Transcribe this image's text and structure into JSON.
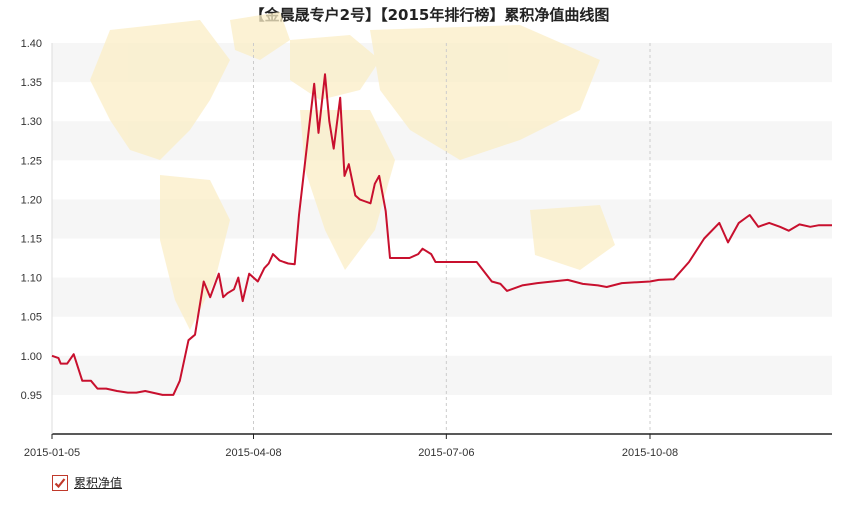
{
  "title": "【金晨晟专户2号】【2015年排行榜】累积净值曲线图",
  "legend": {
    "label": "累积净值",
    "checked": true
  },
  "colors": {
    "line": "#c8102e",
    "band": "#f6f6f6",
    "axis": "#222222",
    "map": "#fbeec6"
  },
  "chart_data": {
    "type": "line",
    "title": "【金晨晟专户2号】【2015年排行榜】累积净值曲线图",
    "xlabel": "",
    "ylabel": "",
    "ylim": [
      0.9,
      1.4
    ],
    "yticks": [
      "0.95",
      "1.00",
      "1.05",
      "1.10",
      "1.15",
      "1.20",
      "1.25",
      "1.30",
      "1.35",
      "1.40"
    ],
    "xticks": [
      "2015-01-05",
      "2015-04-08",
      "2015-07-06",
      "2015-10-08"
    ],
    "grid": {
      "horizontal_bands": true,
      "vertical_dashed": true
    },
    "legend_position": "bottom-left",
    "series": [
      {
        "name": "累积净值",
        "x": [
          "2015-01-05",
          "2015-01-08",
          "2015-01-09",
          "2015-01-12",
          "2015-01-15",
          "2015-01-19",
          "2015-01-21",
          "2015-01-23",
          "2015-01-26",
          "2015-01-30",
          "2015-02-04",
          "2015-02-09",
          "2015-02-13",
          "2015-02-17",
          "2015-02-25",
          "2015-03-02",
          "2015-03-05",
          "2015-03-09",
          "2015-03-12",
          "2015-03-16",
          "2015-03-19",
          "2015-03-23",
          "2015-03-25",
          "2015-03-27",
          "2015-03-30",
          "2015-04-01",
          "2015-04-03",
          "2015-04-06",
          "2015-04-08",
          "2015-04-10",
          "2015-04-13",
          "2015-04-15",
          "2015-04-17",
          "2015-04-20",
          "2015-04-22",
          "2015-04-24",
          "2015-04-27",
          "2015-04-29",
          "2015-05-04",
          "2015-05-06",
          "2015-05-08",
          "2015-05-11",
          "2015-05-13",
          "2015-05-15",
          "2015-05-18",
          "2015-05-20",
          "2015-05-22",
          "2015-05-25",
          "2015-05-27",
          "2015-05-29",
          "2015-06-01",
          "2015-06-03",
          "2015-06-05",
          "2015-06-08",
          "2015-06-10",
          "2015-06-12",
          "2015-06-15",
          "2015-06-17",
          "2015-06-19",
          "2015-06-23",
          "2015-06-25",
          "2015-06-29",
          "2015-07-01",
          "2015-07-03",
          "2015-07-06",
          "2015-07-08",
          "2015-07-13",
          "2015-07-20",
          "2015-07-27",
          "2015-07-31",
          "2015-08-03",
          "2015-08-10",
          "2015-08-17",
          "2015-08-24",
          "2015-08-31",
          "2015-09-07",
          "2015-09-14",
          "2015-09-18",
          "2015-09-25",
          "2015-10-08",
          "2015-10-12",
          "2015-10-19",
          "2015-10-26",
          "2015-11-02",
          "2015-11-09",
          "2015-11-13",
          "2015-11-18",
          "2015-11-23",
          "2015-11-27",
          "2015-12-02",
          "2015-12-07",
          "2015-12-11",
          "2015-12-16",
          "2015-12-21",
          "2015-12-25",
          "2015-12-31"
        ],
        "values": [
          1.0,
          0.997,
          0.99,
          0.99,
          1.002,
          0.968,
          0.968,
          0.968,
          0.958,
          0.958,
          0.955,
          0.953,
          0.953,
          0.955,
          0.95,
          0.95,
          0.968,
          1.02,
          1.027,
          1.095,
          1.075,
          1.105,
          1.075,
          1.08,
          1.085,
          1.1,
          1.07,
          1.105,
          1.1,
          1.095,
          1.112,
          1.118,
          1.13,
          1.122,
          1.12,
          1.118,
          1.117,
          1.18,
          1.3,
          1.348,
          1.285,
          1.36,
          1.3,
          1.265,
          1.33,
          1.23,
          1.245,
          1.205,
          1.2,
          1.198,
          1.195,
          1.22,
          1.23,
          1.185,
          1.125,
          1.125,
          1.125,
          1.125,
          1.125,
          1.13,
          1.137,
          1.13,
          1.12,
          1.12,
          1.12,
          1.12,
          1.12,
          1.12,
          1.095,
          1.092,
          1.083,
          1.09,
          1.093,
          1.095,
          1.097,
          1.092,
          1.09,
          1.088,
          1.093,
          1.095,
          1.097,
          1.098,
          1.12,
          1.15,
          1.17,
          1.145,
          1.17,
          1.18,
          1.165,
          1.17,
          1.165,
          1.16,
          1.168,
          1.165,
          1.167,
          1.167
        ]
      }
    ]
  }
}
